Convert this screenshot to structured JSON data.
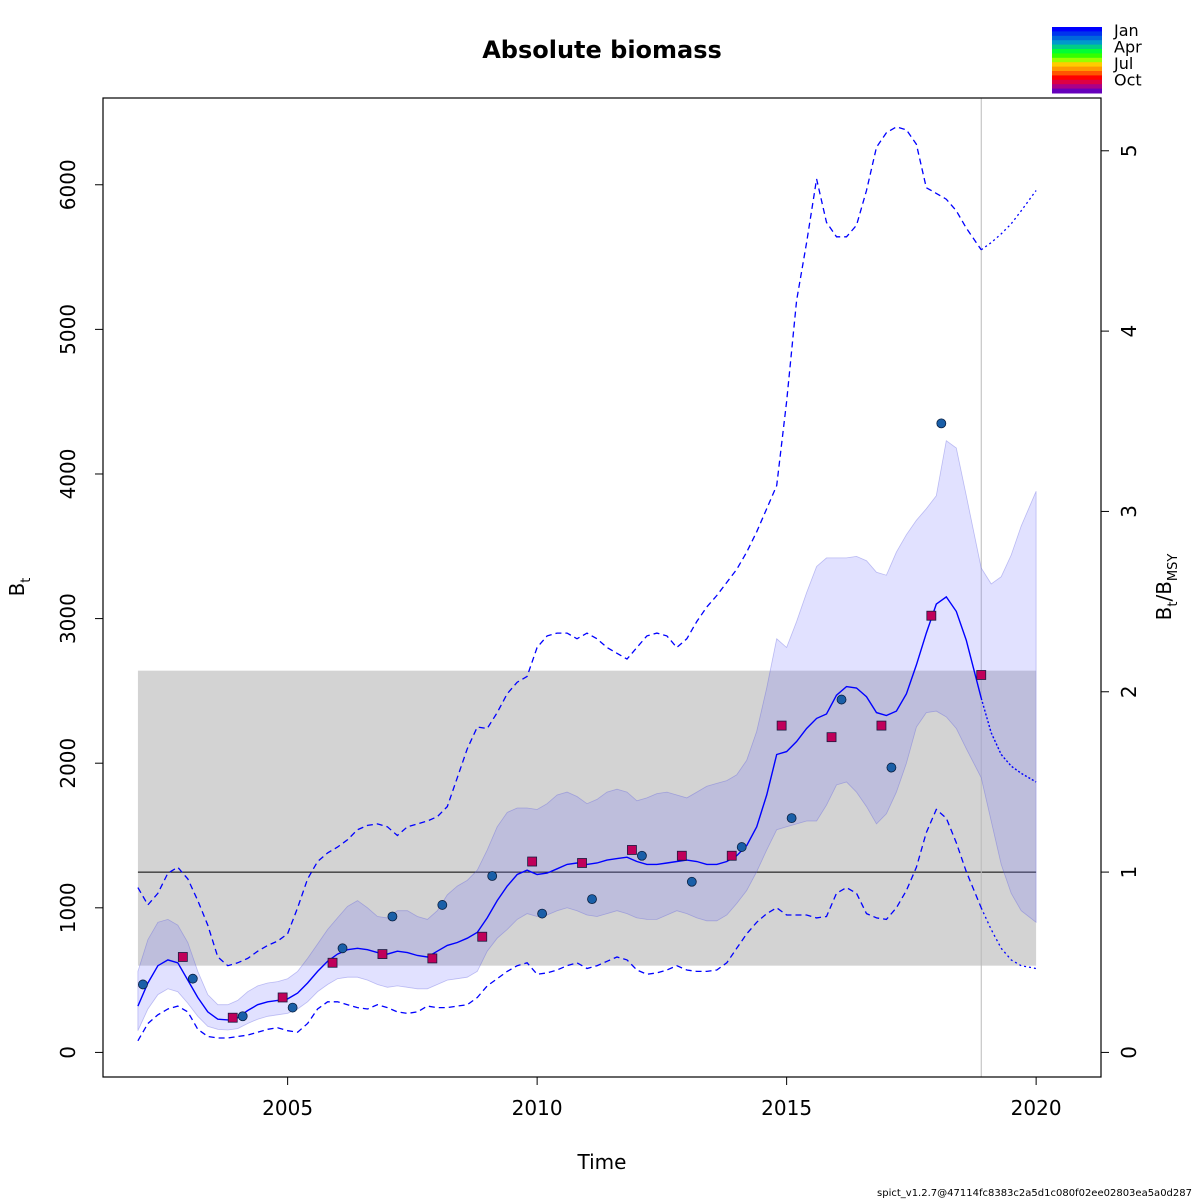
{
  "chart_data": {
    "type": "line",
    "title": "Absolute biomass",
    "xlabel": "Time",
    "ylabel": "B",
    "ylabel_sub": "t",
    "y2label": "B",
    "y2label_sub1": "t",
    "y2label_mid": "/B",
    "y2label_sub2": "MSY",
    "xlim": [
      2001.3,
      2021.3
    ],
    "ylim": [
      -170,
      6600
    ],
    "x_ticks": [
      2005,
      2010,
      2015,
      2020
    ],
    "x_tick_labels": [
      "2005",
      "2010",
      "2015",
      "2020"
    ],
    "y_ticks": [
      0,
      1000,
      2000,
      3000,
      4000,
      5000,
      6000
    ],
    "y_tick_labels": [
      "0",
      "1000",
      "2000",
      "3000",
      "4000",
      "5000",
      "6000"
    ],
    "bmsy": 1247,
    "y2_ticks": [
      0,
      1,
      2,
      3,
      4,
      5
    ],
    "y2_tick_labels": [
      "0",
      "1",
      "2",
      "3",
      "4",
      "5"
    ],
    "bmsy_band": {
      "x": [
        2002.0,
        2020.0
      ],
      "lower": 600,
      "upper": 2640
    },
    "last_obs_time": 2018.9,
    "estimate": {
      "name": "B_t",
      "x": [
        2002.0,
        2002.2,
        2002.4,
        2002.6,
        2002.8,
        2003.0,
        2003.2,
        2003.4,
        2003.6,
        2003.8,
        2004.0,
        2004.2,
        2004.4,
        2004.6,
        2004.8,
        2005.0,
        2005.2,
        2005.4,
        2005.6,
        2005.8,
        2006.0,
        2006.2,
        2006.4,
        2006.6,
        2006.8,
        2007.0,
        2007.2,
        2007.4,
        2007.6,
        2007.8,
        2008.0,
        2008.2,
        2008.4,
        2008.6,
        2008.8,
        2009.0,
        2009.2,
        2009.4,
        2009.6,
        2009.8,
        2010.0,
        2010.2,
        2010.4,
        2010.6,
        2010.8,
        2011.0,
        2011.2,
        2011.4,
        2011.6,
        2011.8,
        2012.0,
        2012.2,
        2012.4,
        2012.6,
        2012.8,
        2013.0,
        2013.2,
        2013.4,
        2013.6,
        2013.8,
        2014.0,
        2014.2,
        2014.4,
        2014.6,
        2014.8,
        2015.0,
        2015.2,
        2015.4,
        2015.6,
        2015.8,
        2016.0,
        2016.2,
        2016.4,
        2016.6,
        2016.8,
        2017.0,
        2017.2,
        2017.4,
        2017.6,
        2017.8,
        2018.0,
        2018.2,
        2018.4,
        2018.6,
        2018.9
      ],
      "values": [
        320,
        480,
        600,
        640,
        620,
        500,
        380,
        280,
        230,
        225,
        240,
        290,
        330,
        350,
        360,
        370,
        410,
        480,
        560,
        630,
        680,
        710,
        720,
        710,
        690,
        680,
        700,
        690,
        670,
        660,
        700,
        740,
        760,
        790,
        830,
        930,
        1050,
        1150,
        1230,
        1260,
        1230,
        1240,
        1270,
        1300,
        1310,
        1300,
        1310,
        1330,
        1340,
        1350,
        1320,
        1300,
        1300,
        1310,
        1320,
        1330,
        1320,
        1300,
        1300,
        1320,
        1360,
        1430,
        1560,
        1780,
        2060,
        2080,
        2150,
        2240,
        2310,
        2340,
        2470,
        2530,
        2520,
        2460,
        2350,
        2330,
        2360,
        2480,
        2680,
        2900,
        3100,
        3150,
        3050,
        2850,
        2450
      ]
    },
    "forecast": {
      "x": [
        2018.9,
        2019.1,
        2019.3,
        2019.5,
        2019.7,
        2020.0
      ],
      "values": [
        2450,
        2210,
        2060,
        1980,
        1930,
        1870
      ]
    },
    "ci95_estimate": {
      "x": [
        2002.0,
        2002.2,
        2002.4,
        2002.6,
        2002.8,
        2003.0,
        2003.2,
        2003.4,
        2003.6,
        2003.8,
        2004.0,
        2004.2,
        2004.4,
        2004.6,
        2004.8,
        2005.0,
        2005.2,
        2005.4,
        2005.6,
        2005.8,
        2006.0,
        2006.2,
        2006.4,
        2006.6,
        2006.8,
        2007.0,
        2007.2,
        2007.4,
        2007.6,
        2007.8,
        2008.0,
        2008.2,
        2008.4,
        2008.6,
        2008.8,
        2009.0,
        2009.2,
        2009.4,
        2009.6,
        2009.8,
        2010.0,
        2010.2,
        2010.4,
        2010.6,
        2010.8,
        2011.0,
        2011.2,
        2011.4,
        2011.6,
        2011.8,
        2012.0,
        2012.2,
        2012.4,
        2012.6,
        2012.8,
        2013.0,
        2013.2,
        2013.4,
        2013.6,
        2013.8,
        2014.0,
        2014.2,
        2014.4,
        2014.6,
        2014.8,
        2015.0,
        2015.2,
        2015.4,
        2015.6,
        2015.8,
        2016.0,
        2016.2,
        2016.4,
        2016.6,
        2016.8,
        2017.0,
        2017.2,
        2017.4,
        2017.6,
        2017.8,
        2018.0,
        2018.2,
        2018.4,
        2018.6,
        2018.9,
        2019.1,
        2019.3,
        2019.5,
        2019.7,
        2020.0
      ],
      "lower": [
        150,
        300,
        400,
        440,
        420,
        340,
        250,
        180,
        160,
        155,
        165,
        200,
        230,
        250,
        260,
        270,
        300,
        350,
        420,
        470,
        510,
        520,
        520,
        500,
        470,
        450,
        460,
        450,
        440,
        440,
        470,
        500,
        510,
        520,
        560,
        700,
        790,
        850,
        920,
        960,
        940,
        950,
        980,
        1000,
        980,
        950,
        940,
        960,
        980,
        960,
        930,
        920,
        920,
        950,
        980,
        960,
        930,
        910,
        910,
        950,
        1030,
        1120,
        1250,
        1400,
        1540,
        1560,
        1580,
        1600,
        1600,
        1710,
        1850,
        1870,
        1800,
        1700,
        1580,
        1650,
        1800,
        2000,
        2250,
        2350,
        2360,
        2320,
        2240,
        2100,
        1900,
        1600,
        1300,
        1100,
        980,
        900
      ],
      "upper": [
        560,
        780,
        900,
        920,
        880,
        760,
        560,
        400,
        330,
        330,
        360,
        420,
        460,
        480,
        490,
        510,
        560,
        650,
        750,
        850,
        930,
        1010,
        1050,
        1000,
        940,
        930,
        980,
        980,
        940,
        920,
        980,
        1090,
        1150,
        1190,
        1260,
        1400,
        1560,
        1660,
        1690,
        1690,
        1680,
        1720,
        1780,
        1800,
        1770,
        1720,
        1750,
        1800,
        1820,
        1800,
        1740,
        1760,
        1790,
        1800,
        1780,
        1760,
        1800,
        1840,
        1860,
        1880,
        1920,
        2020,
        2220,
        2520,
        2860,
        2800,
        2980,
        3180,
        3360,
        3420,
        3420,
        3420,
        3430,
        3400,
        3320,
        3300,
        3460,
        3580,
        3680,
        3760,
        3850,
        4230,
        4180,
        3850,
        3350,
        3240,
        3290,
        3440,
        3640,
        3880
      ]
    },
    "ci95_bmsy_dashed": {
      "x": [
        2002.0,
        2002.2,
        2002.4,
        2002.6,
        2002.8,
        2003.0,
        2003.2,
        2003.4,
        2003.6,
        2003.8,
        2004.0,
        2004.2,
        2004.4,
        2004.6,
        2004.8,
        2005.0,
        2005.2,
        2005.4,
        2005.6,
        2005.8,
        2006.0,
        2006.2,
        2006.4,
        2006.6,
        2006.8,
        2007.0,
        2007.2,
        2007.4,
        2007.6,
        2007.8,
        2008.0,
        2008.2,
        2008.4,
        2008.6,
        2008.8,
        2009.0,
        2009.2,
        2009.4,
        2009.6,
        2009.8,
        2010.0,
        2010.2,
        2010.4,
        2010.6,
        2010.8,
        2011.0,
        2011.2,
        2011.4,
        2011.6,
        2011.8,
        2012.0,
        2012.2,
        2012.4,
        2012.6,
        2012.8,
        2013.0,
        2013.2,
        2013.4,
        2013.6,
        2013.8,
        2014.0,
        2014.2,
        2014.4,
        2014.6,
        2014.8,
        2015.0,
        2015.2,
        2015.4,
        2015.6,
        2015.8,
        2016.0,
        2016.2,
        2016.4,
        2016.6,
        2016.8,
        2017.0,
        2017.2,
        2017.4,
        2017.6,
        2017.8,
        2018.0,
        2018.2,
        2018.4,
        2018.6,
        2018.9
      ],
      "lower": [
        80,
        200,
        260,
        300,
        320,
        280,
        160,
        110,
        100,
        100,
        110,
        120,
        140,
        160,
        170,
        150,
        140,
        200,
        300,
        350,
        350,
        330,
        310,
        300,
        330,
        310,
        280,
        270,
        280,
        320,
        310,
        310,
        320,
        330,
        380,
        460,
        510,
        560,
        600,
        620,
        540,
        550,
        570,
        600,
        620,
        580,
        600,
        630,
        660,
        640,
        570,
        540,
        550,
        570,
        600,
        570,
        560,
        560,
        570,
        620,
        720,
        820,
        900,
        960,
        1000,
        950,
        950,
        950,
        930,
        940,
        1100,
        1140,
        1100,
        960,
        930,
        920,
        1000,
        1120,
        1280,
        1520,
        1680,
        1620,
        1450,
        1250,
        1000
      ],
      "upper": [
        1140,
        1020,
        1100,
        1240,
        1280,
        1200,
        1050,
        880,
        660,
        600,
        620,
        650,
        700,
        740,
        770,
        820,
        1000,
        1200,
        1320,
        1380,
        1420,
        1470,
        1540,
        1570,
        1580,
        1560,
        1500,
        1560,
        1580,
        1600,
        1630,
        1700,
        1900,
        2100,
        2250,
        2240,
        2350,
        2480,
        2560,
        2600,
        2800,
        2880,
        2900,
        2900,
        2860,
        2900,
        2860,
        2800,
        2760,
        2720,
        2800,
        2880,
        2900,
        2880,
        2800,
        2860,
        2980,
        3080,
        3160,
        3250,
        3340,
        3460,
        3600,
        3760,
        3920,
        4500,
        5200,
        5600,
        6040,
        5740,
        5640,
        5640,
        5720,
        5960,
        6260,
        6360,
        6400,
        6380,
        6280,
        5980,
        5940,
        5900,
        5820,
        5700,
        5550
      ]
    },
    "ci95_forecast_dotted": {
      "x": [
        2018.9,
        2019.1,
        2019.3,
        2019.5,
        2019.7,
        2020.0
      ],
      "lower": [
        1000,
        850,
        720,
        640,
        600,
        580
      ],
      "upper": [
        5550,
        5600,
        5660,
        5730,
        5820,
        5960
      ]
    },
    "obs_index1": {
      "name": "index 1",
      "x": [
        2002.1,
        2003.1,
        2004.1,
        2005.1,
        2006.1,
        2007.1,
        2008.1,
        2009.1,
        2010.1,
        2011.1,
        2012.1,
        2013.1,
        2014.1,
        2015.1,
        2016.1,
        2017.1,
        2018.1
      ],
      "values": [
        470,
        510,
        250,
        310,
        720,
        940,
        1020,
        1220,
        960,
        1060,
        1360,
        1180,
        1420,
        1620,
        2440,
        1970,
        4350
      ]
    },
    "obs_index2": {
      "name": "index 2",
      "x": [
        2002.9,
        2003.9,
        2004.9,
        2005.9,
        2006.9,
        2007.9,
        2008.9,
        2009.9,
        2010.9,
        2011.9,
        2012.9,
        2013.9,
        2014.9,
        2015.9,
        2016.9,
        2017.9,
        2018.9
      ],
      "values": [
        660,
        240,
        380,
        620,
        680,
        650,
        800,
        1320,
        1310,
        1400,
        1360,
        1360,
        2260,
        2180,
        2260,
        3020,
        2610
      ]
    },
    "legend": {
      "labels": [
        "Jan",
        "Apr",
        "Jul",
        "Oct"
      ],
      "placement": "top-right",
      "colors": [
        "#0000ff",
        "#0033ee",
        "#0066dd",
        "#0099cc",
        "#00cc88",
        "#00ff33",
        "#33ff00",
        "#99ff00",
        "#ffcc00",
        "#ff9900",
        "#ff5500",
        "#ff0000",
        "#dd0044",
        "#aa0088",
        "#6600bb"
      ]
    },
    "colors": {
      "estimate_line": "#0000ff",
      "ci_fill": "rgba(120,120,255,0.22)",
      "bmsy_band_fill": "#d3d3d3",
      "obs_index1_fill": "#1a5fa8",
      "obs_index2_fill": "#c0005a"
    },
    "footer": "spict_v1.2.7@47114fc8383c2a5d1c080f02ee02803ea5a0d287"
  }
}
